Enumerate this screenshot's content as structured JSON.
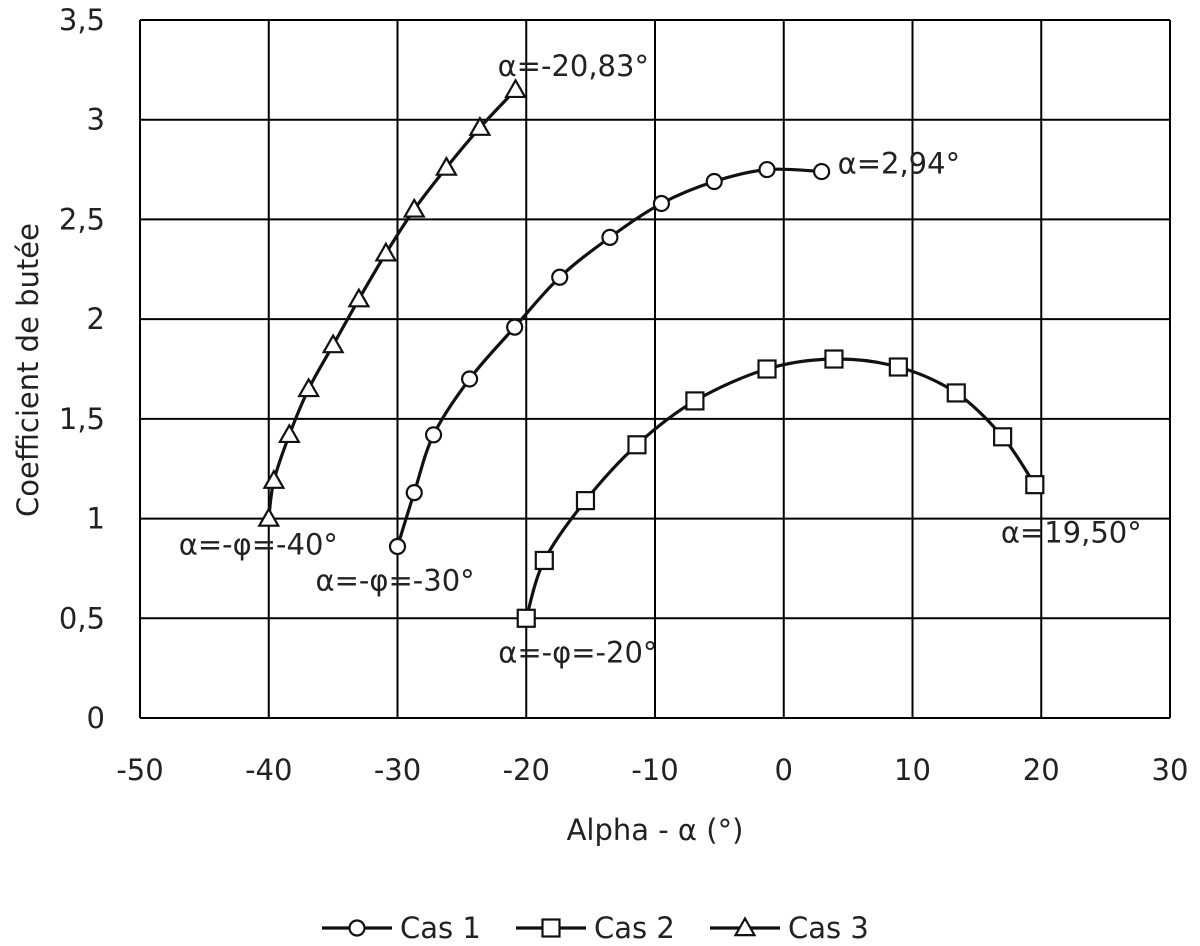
{
  "chart_data": {
    "type": "line",
    "title": "",
    "xlabel": "Alpha - α (°)",
    "ylabel": "Coefficient de butée",
    "xlim": [
      -50,
      30
    ],
    "ylim": [
      0,
      3.5
    ],
    "xticks": [
      -50,
      -40,
      -30,
      -20,
      -10,
      0,
      10,
      20,
      30
    ],
    "yticks": [
      0,
      0.5,
      1,
      1.5,
      2,
      2.5,
      3,
      3.5
    ],
    "xtick_labels": [
      "-50",
      "-40",
      "-30",
      "-20",
      "-10",
      "0",
      "10",
      "20",
      "30"
    ],
    "ytick_labels": [
      "0",
      "0,5",
      "1",
      "1,5",
      "2",
      "2,5",
      "3",
      "3,5"
    ],
    "grid": true,
    "legend_position": "bottom",
    "series": [
      {
        "name": "Cas 1",
        "marker": "circle",
        "x": [
          -30,
          -28.7,
          -27.2,
          -24.4,
          -20.9,
          -17.4,
          -13.5,
          -9.5,
          -5.4,
          -1.3,
          2.94
        ],
        "y": [
          0.86,
          1.13,
          1.42,
          1.7,
          1.96,
          2.21,
          2.41,
          2.58,
          2.69,
          2.75,
          2.74
        ]
      },
      {
        "name": "Cas 2",
        "marker": "square",
        "x": [
          -20,
          -18.6,
          -15.4,
          -11.4,
          -6.9,
          -1.3,
          3.9,
          8.9,
          13.4,
          17.0,
          19.5
        ],
        "y": [
          0.5,
          0.79,
          1.09,
          1.37,
          1.59,
          1.75,
          1.8,
          1.76,
          1.63,
          1.41,
          1.17
        ]
      },
      {
        "name": "Cas 3",
        "marker": "triangle",
        "x": [
          -40,
          -39.6,
          -38.4,
          -36.9,
          -35.0,
          -33.0,
          -30.9,
          -28.7,
          -26.2,
          -23.6,
          -20.83
        ],
        "y": [
          1.0,
          1.19,
          1.42,
          1.65,
          1.87,
          2.1,
          2.33,
          2.55,
          2.76,
          2.96,
          3.15
        ]
      }
    ],
    "annotations": [
      {
        "text": "α=-20,83°",
        "x": -20.83,
        "y": 3.15
      },
      {
        "text": "α=2,94°",
        "x": 2.94,
        "y": 2.74
      },
      {
        "text": "α=-φ=-40°",
        "x": -40,
        "y": 1.0
      },
      {
        "text": "α=-φ=-30°",
        "x": -30,
        "y": 0.86
      },
      {
        "text": "α=-φ=-20°",
        "x": -20,
        "y": 0.5
      },
      {
        "text": "α=19,50°",
        "x": 19.5,
        "y": 1.17
      }
    ]
  }
}
